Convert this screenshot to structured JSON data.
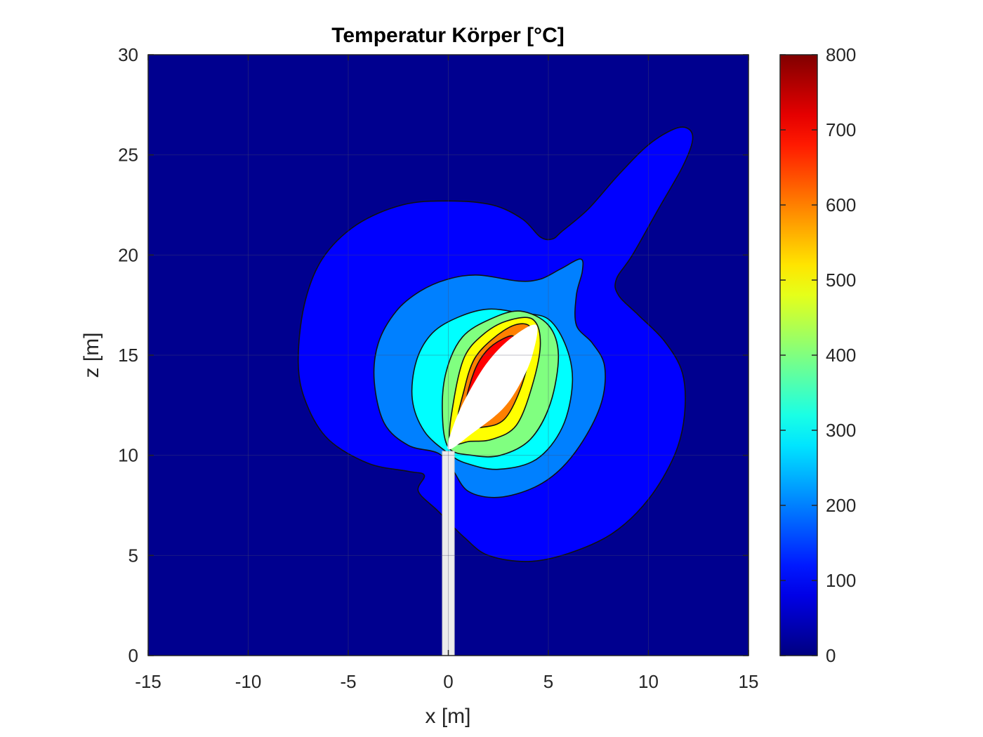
{
  "chart_data": {
    "type": "heatmap",
    "subtype": "filled-contour",
    "title": "Temperatur Körper [°C]",
    "xlabel": "x [m]",
    "ylabel": "z [m]",
    "xlim": [
      -15,
      15
    ],
    "ylim": [
      0,
      30
    ],
    "xticks": [
      "-15",
      "-10",
      "-5",
      "0",
      "5",
      "10",
      "15"
    ],
    "yticks": [
      "0",
      "5",
      "10",
      "15",
      "20",
      "25",
      "30"
    ],
    "grid": true,
    "colorbar": {
      "colormap": "jet",
      "clim": [
        0,
        800
      ],
      "ticks": [
        "0",
        "100",
        "200",
        "300",
        "400",
        "500",
        "600",
        "700",
        "800"
      ],
      "position": "right"
    },
    "contour_levels": [
      {
        "level": 0,
        "color": "#00008f"
      },
      {
        "level": 100,
        "color": "#0000ff"
      },
      {
        "level": 200,
        "color": "#0080ff"
      },
      {
        "level": 300,
        "color": "#00ffff"
      },
      {
        "level": 400,
        "color": "#80ff80"
      },
      {
        "level": 500,
        "color": "#ffff00"
      },
      {
        "level": 600,
        "color": "#ff8000"
      },
      {
        "level": 700,
        "color": "#ff0000"
      },
      {
        "level": 750,
        "color": "#800000"
      }
    ],
    "regions": [
      {
        "level": 100,
        "points": [
          [
            -7.5,
            14.6
          ],
          [
            -7.2,
            17.5
          ],
          [
            -6.3,
            19.8
          ],
          [
            -4.6,
            21.5
          ],
          [
            -2.3,
            22.5
          ],
          [
            0,
            22.7
          ],
          [
            2.2,
            22.5
          ],
          [
            3.7,
            21.8
          ],
          [
            4.6,
            20.9
          ],
          [
            5.2,
            20.8
          ],
          [
            5.7,
            21.2
          ],
          [
            7.0,
            22.3
          ],
          [
            8.5,
            24.0
          ],
          [
            10.0,
            25.5
          ],
          [
            11.3,
            26.3
          ],
          [
            12.0,
            26.3
          ],
          [
            12.2,
            25.7
          ],
          [
            11.7,
            24.4
          ],
          [
            10.5,
            22.3
          ],
          [
            9.2,
            20.0
          ],
          [
            8.4,
            18.8
          ],
          [
            8.5,
            18.0
          ],
          [
            9.5,
            17.0
          ],
          [
            10.8,
            15.7
          ],
          [
            11.7,
            14.1
          ],
          [
            11.8,
            12.0
          ],
          [
            11.3,
            10.0
          ],
          [
            10.0,
            7.8
          ],
          [
            8.2,
            6.1
          ],
          [
            6.0,
            5.1
          ],
          [
            4.0,
            4.7
          ],
          [
            2.0,
            5.0
          ],
          [
            0.8,
            5.9
          ],
          [
            -0.5,
            7.2
          ],
          [
            -1.5,
            8.2
          ],
          [
            -1.2,
            9.0
          ],
          [
            -2.0,
            9.2
          ],
          [
            -4.0,
            9.6
          ],
          [
            -6.0,
            10.8
          ],
          [
            -7.1,
            12.6
          ]
        ]
      },
      {
        "level": 200,
        "points": [
          [
            -3.7,
            13.7
          ],
          [
            -3.5,
            15.6
          ],
          [
            -2.6,
            17.2
          ],
          [
            -1.4,
            18.2
          ],
          [
            0,
            18.8
          ],
          [
            1.5,
            19.0
          ],
          [
            3.5,
            18.7
          ],
          [
            4.6,
            18.8
          ],
          [
            5.6,
            19.3
          ],
          [
            6.6,
            19.8
          ],
          [
            6.7,
            19.2
          ],
          [
            6.4,
            18.0
          ],
          [
            6.4,
            16.5
          ],
          [
            7.2,
            15.6
          ],
          [
            7.8,
            14.5
          ],
          [
            7.7,
            12.8
          ],
          [
            6.9,
            11.0
          ],
          [
            5.7,
            9.4
          ],
          [
            4.3,
            8.4
          ],
          [
            2.5,
            7.9
          ],
          [
            1.0,
            8.2
          ],
          [
            0.2,
            9.3
          ],
          [
            -0.5,
            10.1
          ],
          [
            -2.0,
            10.5
          ],
          [
            -3.2,
            11.6
          ]
        ]
      },
      {
        "level": 300,
        "points": [
          [
            -1.8,
            12.8
          ],
          [
            -1.6,
            14.7
          ],
          [
            -0.8,
            16.1
          ],
          [
            0.5,
            16.9
          ],
          [
            2.0,
            17.3
          ],
          [
            3.6,
            17.1
          ],
          [
            5.0,
            16.8
          ],
          [
            5.9,
            15.4
          ],
          [
            6.2,
            13.6
          ],
          [
            5.7,
            11.4
          ],
          [
            4.4,
            9.8
          ],
          [
            2.5,
            9.3
          ],
          [
            0.9,
            9.6
          ],
          [
            0,
            10.1
          ],
          [
            -1.2,
            11.2
          ]
        ]
      },
      {
        "level": 400,
        "points": [
          [
            0,
            10.4
          ],
          [
            -0.3,
            12.2
          ],
          [
            -0.1,
            14.2
          ],
          [
            0.7,
            15.9
          ],
          [
            2.1,
            16.8
          ],
          [
            3.6,
            17.2
          ],
          [
            5.0,
            16.5
          ],
          [
            5.5,
            15.0
          ],
          [
            5.1,
            12.6
          ],
          [
            4.1,
            10.8
          ],
          [
            2.6,
            10.0
          ],
          [
            1.2,
            10.0
          ]
        ]
      },
      {
        "level": 500,
        "points": [
          [
            0.1,
            10.7
          ],
          [
            0.3,
            12.9
          ],
          [
            0.8,
            14.9
          ],
          [
            1.7,
            16.0
          ],
          [
            2.9,
            16.7
          ],
          [
            4.2,
            16.8
          ],
          [
            4.6,
            15.6
          ],
          [
            4.2,
            13.5
          ],
          [
            3.4,
            11.5
          ],
          [
            2.2,
            10.8
          ],
          [
            1.1,
            10.7
          ]
        ]
      },
      {
        "level": 600,
        "points": [
          [
            0.5,
            11.5
          ],
          [
            0.8,
            13.3
          ],
          [
            1.3,
            14.8
          ],
          [
            2.2,
            15.8
          ],
          [
            3.3,
            16.5
          ],
          [
            4.1,
            16.4
          ],
          [
            4.1,
            15.2
          ],
          [
            3.6,
            13.3
          ],
          [
            2.8,
            11.8
          ],
          [
            1.7,
            11.4
          ]
        ]
      },
      {
        "level": 700,
        "points": [
          [
            0.9,
            12.6
          ],
          [
            1.3,
            14.2
          ],
          [
            1.9,
            15.2
          ],
          [
            2.7,
            15.8
          ],
          [
            3.3,
            15.9
          ],
          [
            3.2,
            14.9
          ],
          [
            2.8,
            13.4
          ],
          [
            2.2,
            12.1
          ],
          [
            1.4,
            11.9
          ]
        ]
      },
      {
        "level": 750,
        "points": [
          [
            1.5,
            13.6
          ],
          [
            2.0,
            14.6
          ],
          [
            2.5,
            15.1
          ],
          [
            2.9,
            15.0
          ],
          [
            2.6,
            14.1
          ],
          [
            2.1,
            13.3
          ]
        ]
      }
    ],
    "blank_body": {
      "points": [
        [
          0,
          10.3
        ],
        [
          1.2,
          11.1
        ],
        [
          2.7,
          12.3
        ],
        [
          3.6,
          13.6
        ],
        [
          4.2,
          15.0
        ],
        [
          4.4,
          16.5
        ],
        [
          3.2,
          15.9
        ],
        [
          2.0,
          14.7
        ],
        [
          1.0,
          13.1
        ],
        [
          0.3,
          11.6
        ]
      ]
    },
    "mast": {
      "x": [
        -0.3,
        0.3
      ],
      "z": [
        0,
        10.2
      ]
    }
  }
}
